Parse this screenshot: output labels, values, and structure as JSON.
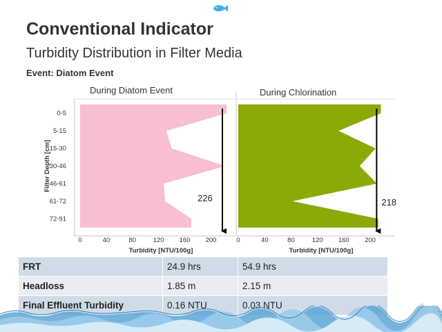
{
  "slide": {
    "title": "Conventional Indicator",
    "subtitle": "Turbidity Distribution in Filter Media",
    "event_label": "Event: Diatom Event",
    "page_number": "9"
  },
  "chart_data": [
    {
      "type": "area",
      "orientation": "horizontal",
      "title": "During Diatom Event",
      "xlabel": "Turbidity [NTU/100g]",
      "ylabel": "Filter Depth  [cm]",
      "categories": [
        "0-5",
        "5-15",
        "15-30",
        "30-46",
        "46-61",
        "61-72",
        "72-91"
      ],
      "values": [
        224,
        132,
        140,
        222,
        128,
        130,
        170
      ],
      "xlim": [
        0,
        226
      ],
      "xticks": [
        0,
        40,
        80,
        120,
        160,
        200
      ],
      "fill_color": "#f7bfcf",
      "annotation": "226",
      "legend": "none"
    },
    {
      "type": "area",
      "orientation": "horizontal",
      "title": "During Chlorination",
      "xlabel": "Turbidity [NTU/100g]",
      "ylabel": "",
      "categories": [
        "0-5",
        "5-15",
        "15-30",
        "30-46",
        "46-61",
        "61-72",
        "72-91"
      ],
      "values": [
        216,
        152,
        208,
        184,
        210,
        82,
        212
      ],
      "xlim": [
        0,
        226
      ],
      "xticks": [
        0,
        40,
        80,
        120,
        160,
        200
      ],
      "fill_color": "#8aab05",
      "annotation": "218",
      "legend": "none"
    }
  ],
  "table": {
    "rows": [
      {
        "label": "FRT",
        "during_diatom": "24.9 hrs",
        "during_chlorination": "54.9 hrs"
      },
      {
        "label": "Headloss",
        "during_diatom": "1.85 m",
        "during_chlorination": "2.15 m"
      },
      {
        "label": "Final Effluent Turbidity",
        "during_diatom": "0.16 NTU",
        "during_chlorination": "0.03 NTU"
      }
    ]
  },
  "decoration": {
    "fish": "fish-icon",
    "wave": "water-wave-decoration",
    "wave_color": "#5aa6d6"
  }
}
